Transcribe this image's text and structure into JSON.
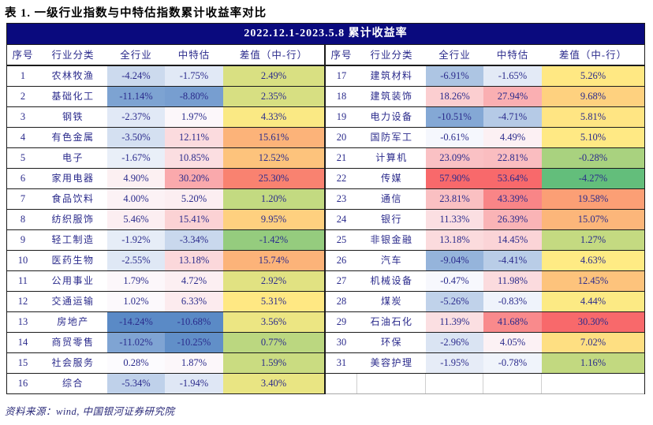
{
  "caption": "表 1. 一级行业指数与中特估指数累计收益率对比",
  "period_header": "2022.12.1-2023.5.8 累计收益率",
  "columns": [
    "序号",
    "行业分类",
    "全行业",
    "中特估",
    "差值（中-行）"
  ],
  "source_note": "资料来源：wind, 中国银河证券研究院",
  "colors": {
    "band_bg": "#0A0A7E",
    "band_text": "#FFFFFF",
    "cell_text": "#2B2B8C",
    "border": "#1B1B1B",
    "value_scale": {
      "min": "#5A8AC6",
      "mid": "#FCFCFF",
      "max": "#F8696B"
    },
    "diff_scale": {
      "min": "#63BE7B",
      "mid": "#FFEB84",
      "max": "#F8696B"
    }
  },
  "rows": [
    {
      "no": "1",
      "industry": "农林牧渔",
      "all_industry": "-4.24%",
      "zhongtegu": "-1.75%",
      "diff": "2.49%"
    },
    {
      "no": "2",
      "industry": "基础化工",
      "all_industry": "-11.14%",
      "zhongtegu": "-8.80%",
      "diff": "2.35%"
    },
    {
      "no": "3",
      "industry": "钢铁",
      "all_industry": "-2.37%",
      "zhongtegu": "1.97%",
      "diff": "4.33%"
    },
    {
      "no": "4",
      "industry": "有色金属",
      "all_industry": "-3.50%",
      "zhongtegu": "12.11%",
      "diff": "15.61%"
    },
    {
      "no": "5",
      "industry": "电子",
      "all_industry": "-1.67%",
      "zhongtegu": "10.85%",
      "diff": "12.52%"
    },
    {
      "no": "6",
      "industry": "家用电器",
      "all_industry": "4.90%",
      "zhongtegu": "30.20%",
      "diff": "25.30%"
    },
    {
      "no": "7",
      "industry": "食品饮料",
      "all_industry": "4.00%",
      "zhongtegu": "5.20%",
      "diff": "1.20%"
    },
    {
      "no": "8",
      "industry": "纺织服饰",
      "all_industry": "5.46%",
      "zhongtegu": "15.41%",
      "diff": "9.95%"
    },
    {
      "no": "9",
      "industry": "轻工制造",
      "all_industry": "-1.92%",
      "zhongtegu": "-3.34%",
      "diff": "-1.42%"
    },
    {
      "no": "10",
      "industry": "医药生物",
      "all_industry": "-2.55%",
      "zhongtegu": "13.18%",
      "diff": "15.74%"
    },
    {
      "no": "11",
      "industry": "公用事业",
      "all_industry": "1.79%",
      "zhongtegu": "4.72%",
      "diff": "2.92%"
    },
    {
      "no": "12",
      "industry": "交通运输",
      "all_industry": "1.02%",
      "zhongtegu": "6.33%",
      "diff": "5.31%"
    },
    {
      "no": "13",
      "industry": "房地产",
      "all_industry": "-14.24%",
      "zhongtegu": "-10.68%",
      "diff": "3.56%"
    },
    {
      "no": "14",
      "industry": "商贸零售",
      "all_industry": "-11.02%",
      "zhongtegu": "-10.25%",
      "diff": "0.77%"
    },
    {
      "no": "15",
      "industry": "社会服务",
      "all_industry": "0.28%",
      "zhongtegu": "1.87%",
      "diff": "1.59%"
    },
    {
      "no": "16",
      "industry": "综合",
      "all_industry": "-5.34%",
      "zhongtegu": "-1.94%",
      "diff": "3.40%"
    },
    {
      "no": "17",
      "industry": "建筑材料",
      "all_industry": "-6.91%",
      "zhongtegu": "-1.65%",
      "diff": "5.26%"
    },
    {
      "no": "18",
      "industry": "建筑装饰",
      "all_industry": "18.26%",
      "zhongtegu": "27.94%",
      "diff": "9.68%"
    },
    {
      "no": "19",
      "industry": "电力设备",
      "all_industry": "-10.51%",
      "zhongtegu": "-4.71%",
      "diff": "5.81%"
    },
    {
      "no": "20",
      "industry": "国防军工",
      "all_industry": "-0.61%",
      "zhongtegu": "4.49%",
      "diff": "5.10%"
    },
    {
      "no": "21",
      "industry": "计算机",
      "all_industry": "23.09%",
      "zhongtegu": "22.81%",
      "diff": "-0.28%"
    },
    {
      "no": "22",
      "industry": "传媒",
      "all_industry": "57.90%",
      "zhongtegu": "53.64%",
      "diff": "-4.27%"
    },
    {
      "no": "23",
      "industry": "通信",
      "all_industry": "23.81%",
      "zhongtegu": "43.39%",
      "diff": "19.58%"
    },
    {
      "no": "24",
      "industry": "银行",
      "all_industry": "11.33%",
      "zhongtegu": "26.39%",
      "diff": "15.07%"
    },
    {
      "no": "25",
      "industry": "非银金融",
      "all_industry": "13.18%",
      "zhongtegu": "14.45%",
      "diff": "1.27%"
    },
    {
      "no": "26",
      "industry": "汽车",
      "all_industry": "-9.04%",
      "zhongtegu": "-4.41%",
      "diff": "4.63%"
    },
    {
      "no": "27",
      "industry": "机械设备",
      "all_industry": "-0.47%",
      "zhongtegu": "11.98%",
      "diff": "12.45%"
    },
    {
      "no": "28",
      "industry": "煤炭",
      "all_industry": "-5.26%",
      "zhongtegu": "-0.83%",
      "diff": "4.44%"
    },
    {
      "no": "29",
      "industry": "石油石化",
      "all_industry": "11.39%",
      "zhongtegu": "41.68%",
      "diff": "30.30%"
    },
    {
      "no": "30",
      "industry": "环保",
      "all_industry": "-2.96%",
      "zhongtegu": "4.05%",
      "diff": "7.02%"
    },
    {
      "no": "31",
      "industry": "美容护理",
      "all_industry": "-1.95%",
      "zhongtegu": "-0.78%",
      "diff": "1.16%"
    }
  ]
}
